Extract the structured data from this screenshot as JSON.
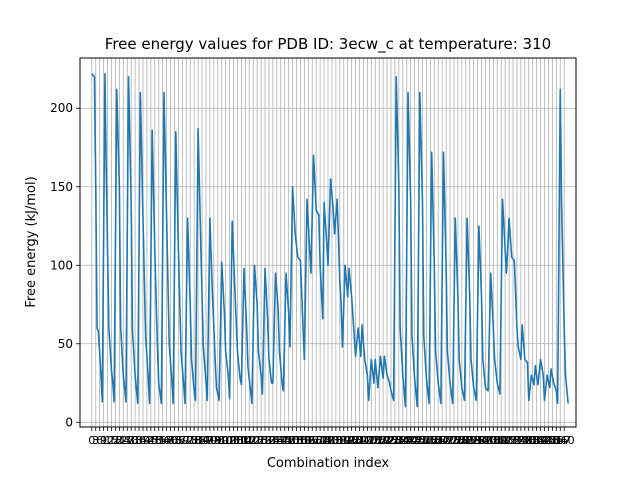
{
  "chart_data": {
    "type": "line",
    "title": "Free energy values for PDB ID: 3ecw_c at temperature: 310",
    "xlabel": "Combination index",
    "ylabel": "Free energy (kJ/mol)",
    "xlim": [
      -9,
      369
    ],
    "ylim": [
      -3,
      232
    ],
    "yticks": [
      0,
      50,
      100,
      150,
      200
    ],
    "xtick_step": 3,
    "xtick_last": 360,
    "grid": {
      "x": true,
      "y": true
    },
    "series": [
      {
        "color": "#1f77b4",
        "points": [
          [
            0,
            222
          ],
          [
            2,
            220
          ],
          [
            3,
            150
          ],
          [
            4,
            60
          ],
          [
            5,
            58
          ],
          [
            7,
            30
          ],
          [
            8,
            13
          ],
          [
            10,
            222
          ],
          [
            11,
            160
          ],
          [
            13,
            60
          ],
          [
            15,
            33
          ],
          [
            16,
            25
          ],
          [
            17,
            13
          ],
          [
            19,
            212
          ],
          [
            21,
            150
          ],
          [
            22,
            60
          ],
          [
            24,
            30
          ],
          [
            26,
            13
          ],
          [
            28,
            220
          ],
          [
            30,
            140
          ],
          [
            31,
            58
          ],
          [
            33,
            30
          ],
          [
            35,
            12
          ],
          [
            37,
            210
          ],
          [
            39,
            130
          ],
          [
            41,
            55
          ],
          [
            43,
            28
          ],
          [
            44,
            12
          ],
          [
            46,
            186
          ],
          [
            48,
            110
          ],
          [
            50,
            48
          ],
          [
            51,
            25
          ],
          [
            53,
            12
          ],
          [
            55,
            210
          ],
          [
            57,
            130
          ],
          [
            59,
            50
          ],
          [
            61,
            26
          ],
          [
            62,
            12
          ],
          [
            64,
            185
          ],
          [
            66,
            110
          ],
          [
            68,
            45
          ],
          [
            70,
            24
          ],
          [
            71,
            12
          ],
          [
            73,
            130
          ],
          [
            75,
            75
          ],
          [
            76,
            40
          ],
          [
            78,
            20
          ],
          [
            79,
            14
          ],
          [
            81,
            187
          ],
          [
            83,
            115
          ],
          [
            85,
            48
          ],
          [
            87,
            26
          ],
          [
            88,
            14
          ],
          [
            90,
            130
          ],
          [
            92,
            80
          ],
          [
            94,
            40
          ],
          [
            95,
            22
          ],
          [
            97,
            14
          ],
          [
            99,
            102
          ],
          [
            101,
            70
          ],
          [
            102,
            45
          ],
          [
            104,
            30
          ],
          [
            105,
            15
          ],
          [
            107,
            128
          ],
          [
            109,
            85
          ],
          [
            111,
            45
          ],
          [
            113,
            28
          ],
          [
            114,
            24
          ],
          [
            116,
            98
          ],
          [
            118,
            60
          ],
          [
            119,
            35
          ],
          [
            121,
            20
          ],
          [
            122,
            12
          ],
          [
            124,
            100
          ],
          [
            126,
            75
          ],
          [
            127,
            45
          ],
          [
            129,
            30
          ],
          [
            130,
            18
          ],
          [
            132,
            98
          ],
          [
            134,
            65
          ],
          [
            135,
            40
          ],
          [
            137,
            25
          ],
          [
            138,
            25
          ],
          [
            140,
            95
          ],
          [
            142,
            72
          ],
          [
            143,
            45
          ],
          [
            145,
            25
          ],
          [
            146,
            20
          ],
          [
            148,
            95
          ],
          [
            150,
            70
          ],
          [
            151,
            48
          ],
          [
            153,
            150
          ],
          [
            155,
            120
          ],
          [
            157,
            105
          ],
          [
            159,
            103
          ],
          [
            161,
            60
          ],
          [
            162,
            40
          ],
          [
            164,
            142
          ],
          [
            166,
            110
          ],
          [
            167,
            95
          ],
          [
            169,
            170
          ],
          [
            171,
            135
          ],
          [
            173,
            132
          ],
          [
            174,
            100
          ],
          [
            176,
            66
          ],
          [
            177,
            140
          ],
          [
            179,
            115
          ],
          [
            180,
            100
          ],
          [
            182,
            155
          ],
          [
            184,
            135
          ],
          [
            185,
            120
          ],
          [
            187,
            142
          ],
          [
            189,
            90
          ],
          [
            190,
            75
          ],
          [
            191,
            48
          ],
          [
            193,
            100
          ],
          [
            195,
            80
          ],
          [
            196,
            98
          ],
          [
            198,
            80
          ],
          [
            200,
            55
          ],
          [
            201,
            42
          ],
          [
            203,
            60
          ],
          [
            205,
            42
          ],
          [
            206,
            62
          ],
          [
            208,
            40
          ],
          [
            210,
            30
          ],
          [
            211,
            14
          ],
          [
            213,
            40
          ],
          [
            215,
            25
          ],
          [
            216,
            40
          ],
          [
            218,
            22
          ],
          [
            220,
            42
          ],
          [
            222,
            28
          ],
          [
            223,
            42
          ],
          [
            225,
            30
          ],
          [
            227,
            25
          ],
          [
            228,
            20
          ],
          [
            230,
            14
          ],
          [
            232,
            220
          ],
          [
            234,
            150
          ],
          [
            235,
            60
          ],
          [
            237,
            30
          ],
          [
            239,
            10
          ],
          [
            241,
            210
          ],
          [
            243,
            140
          ],
          [
            244,
            55
          ],
          [
            246,
            28
          ],
          [
            248,
            10
          ],
          [
            250,
            210
          ],
          [
            252,
            140
          ],
          [
            253,
            55
          ],
          [
            255,
            28
          ],
          [
            257,
            12
          ],
          [
            259,
            172
          ],
          [
            261,
            100
          ],
          [
            262,
            45
          ],
          [
            264,
            25
          ],
          [
            266,
            12
          ],
          [
            268,
            172
          ],
          [
            270,
            100
          ],
          [
            271,
            45
          ],
          [
            273,
            25
          ],
          [
            275,
            12
          ],
          [
            277,
            130
          ],
          [
            279,
            80
          ],
          [
            280,
            40
          ],
          [
            282,
            22
          ],
          [
            284,
            14
          ],
          [
            286,
            130
          ],
          [
            288,
            80
          ],
          [
            289,
            40
          ],
          [
            291,
            22
          ],
          [
            293,
            14
          ],
          [
            295,
            125
          ],
          [
            297,
            80
          ],
          [
            298,
            40
          ],
          [
            300,
            22
          ],
          [
            302,
            20
          ],
          [
            304,
            95
          ],
          [
            306,
            60
          ],
          [
            307,
            40
          ],
          [
            309,
            25
          ],
          [
            311,
            18
          ],
          [
            313,
            142
          ],
          [
            315,
            110
          ],
          [
            316,
            95
          ],
          [
            318,
            130
          ],
          [
            320,
            105
          ],
          [
            322,
            103
          ],
          [
            324,
            60
          ],
          [
            325,
            48
          ],
          [
            327,
            40
          ],
          [
            328,
            62
          ],
          [
            330,
            40
          ],
          [
            332,
            38
          ],
          [
            333,
            14
          ],
          [
            335,
            30
          ],
          [
            337,
            24
          ],
          [
            338,
            36
          ],
          [
            340,
            24
          ],
          [
            342,
            40
          ],
          [
            344,
            30
          ],
          [
            345,
            14
          ],
          [
            347,
            30
          ],
          [
            349,
            22
          ],
          [
            350,
            34
          ],
          [
            352,
            25
          ],
          [
            354,
            20
          ],
          [
            355,
            12
          ],
          [
            357,
            212
          ],
          [
            358,
            140
          ],
          [
            360,
            60
          ],
          [
            361,
            30
          ],
          [
            363,
            12
          ]
        ]
      }
    ]
  }
}
